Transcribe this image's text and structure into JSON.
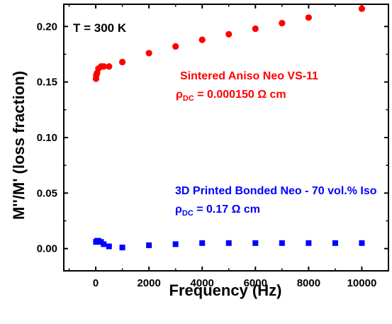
{
  "chart_data": {
    "type": "scatter",
    "xlabel": "Frequency (Hz)",
    "ylabel": "M''/M' (loss fraction)",
    "xlim": [
      -1200,
      11000
    ],
    "ylim": [
      -0.02,
      0.22
    ],
    "x_ticks": [
      0,
      2000,
      4000,
      6000,
      8000,
      10000
    ],
    "x_tick_labels": [
      "0",
      "2000",
      "4000",
      "6000",
      "8000",
      "10000"
    ],
    "y_ticks": [
      0.0,
      0.05,
      0.1,
      0.15,
      0.2
    ],
    "y_tick_labels": [
      "0.00",
      "0.05",
      "0.10",
      "0.15",
      "0.20"
    ],
    "grid": false,
    "temperature_label": "T = 300 K",
    "series": [
      {
        "name": "Sintered Aniso Neo VS-11",
        "rho_symbol": "ρ",
        "rho_sub": "DC",
        "rho_value": " = 0.000150 Ω cm",
        "color": "#ff0000",
        "marker": "circle",
        "x": [
          10,
          20,
          50,
          100,
          200,
          300,
          500,
          1000,
          2000,
          3000,
          4000,
          5000,
          6000,
          7000,
          8000,
          10000
        ],
        "y": [
          0.153,
          0.156,
          0.158,
          0.162,
          0.164,
          0.164,
          0.164,
          0.168,
          0.176,
          0.182,
          0.188,
          0.193,
          0.198,
          0.203,
          0.208,
          0.216
        ]
      },
      {
        "name": "3D Printed Bonded Neo - 70 vol.% Iso",
        "rho_symbol": "ρ",
        "rho_sub": "DC",
        "rho_value": " = 0.17 Ω cm",
        "color": "#0000ff",
        "marker": "square",
        "x": [
          10,
          50,
          100,
          200,
          300,
          500,
          1000,
          2000,
          3000,
          4000,
          5000,
          6000,
          7000,
          8000,
          9000,
          10000
        ],
        "y": [
          0.006,
          0.007,
          0.007,
          0.006,
          0.004,
          0.002,
          0.001,
          0.003,
          0.004,
          0.005,
          0.005,
          0.005,
          0.005,
          0.005,
          0.005,
          0.005
        ]
      }
    ]
  }
}
